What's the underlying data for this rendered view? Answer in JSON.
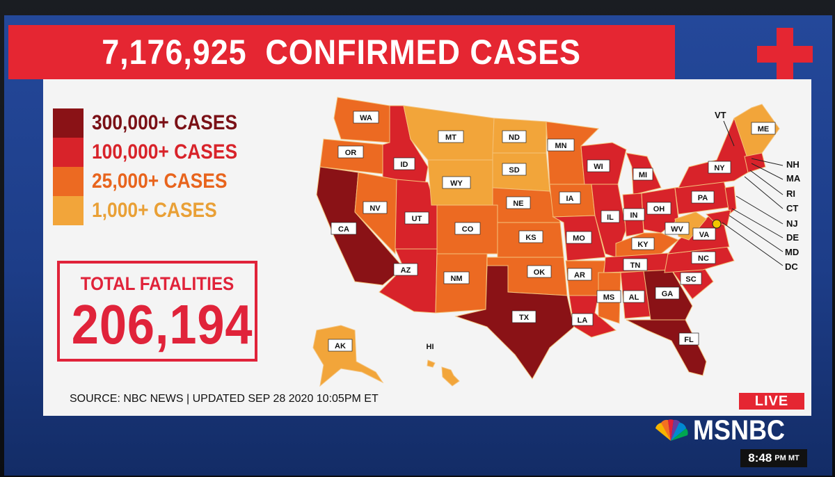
{
  "banner": {
    "count": "7,176,925",
    "title": "CONFIRMED CASES"
  },
  "legend": [
    {
      "label": "300,000+ CASES",
      "color": "#8a1216",
      "text_color": "#7a1016"
    },
    {
      "label": "100,000+ CASES",
      "color": "#d8232a",
      "text_color": "#d8232a"
    },
    {
      "label": "25,000+ CASES",
      "color": "#ec6a22",
      "text_color": "#e8641d"
    },
    {
      "label": "1,000+ CASES",
      "color": "#f2a53a",
      "text_color": "#e9a036"
    }
  ],
  "fatalities": {
    "label": "TOTAL FATALITIES",
    "value": "206,194"
  },
  "source": "SOURCE: NBC NEWS | UPDATED SEP 28 2020 10:05PM ET",
  "live": "LIVE",
  "network": "MSNBC",
  "clock": {
    "time": "8:48",
    "zone": "PM MT"
  },
  "map_states": [
    {
      "code": "WA",
      "tier": 3
    },
    {
      "code": "OR",
      "tier": 3
    },
    {
      "code": "CA",
      "tier": 1
    },
    {
      "code": "ID",
      "tier": 2
    },
    {
      "code": "NV",
      "tier": 3
    },
    {
      "code": "UT",
      "tier": 2
    },
    {
      "code": "AZ",
      "tier": 2
    },
    {
      "code": "MT",
      "tier": 4
    },
    {
      "code": "WY",
      "tier": 4
    },
    {
      "code": "CO",
      "tier": 3
    },
    {
      "code": "NM",
      "tier": 3
    },
    {
      "code": "ND",
      "tier": 4
    },
    {
      "code": "SD",
      "tier": 4
    },
    {
      "code": "NE",
      "tier": 3
    },
    {
      "code": "KS",
      "tier": 3
    },
    {
      "code": "OK",
      "tier": 3
    },
    {
      "code": "TX",
      "tier": 1
    },
    {
      "code": "MN",
      "tier": 3
    },
    {
      "code": "IA",
      "tier": 3
    },
    {
      "code": "MO",
      "tier": 2
    },
    {
      "code": "AR",
      "tier": 3
    },
    {
      "code": "LA",
      "tier": 2
    },
    {
      "code": "WI",
      "tier": 2
    },
    {
      "code": "IL",
      "tier": 2
    },
    {
      "code": "MI",
      "tier": 2
    },
    {
      "code": "IN",
      "tier": 2
    },
    {
      "code": "OH",
      "tier": 2
    },
    {
      "code": "KY",
      "tier": 3
    },
    {
      "code": "TN",
      "tier": 2
    },
    {
      "code": "MS",
      "tier": 3
    },
    {
      "code": "AL",
      "tier": 2
    },
    {
      "code": "GA",
      "tier": 1
    },
    {
      "code": "FL",
      "tier": 1
    },
    {
      "code": "SC",
      "tier": 2
    },
    {
      "code": "NC",
      "tier": 2
    },
    {
      "code": "VA",
      "tier": 2
    },
    {
      "code": "WV",
      "tier": 4
    },
    {
      "code": "PA",
      "tier": 2
    },
    {
      "code": "NY",
      "tier": 2
    },
    {
      "code": "ME",
      "tier": 4
    },
    {
      "code": "AK",
      "tier": 4
    },
    {
      "code": "HI",
      "tier": 4
    }
  ],
  "callouts": [
    "VT",
    "NH",
    "MA",
    "RI",
    "CT",
    "NJ",
    "DE",
    "MD",
    "DC"
  ]
}
